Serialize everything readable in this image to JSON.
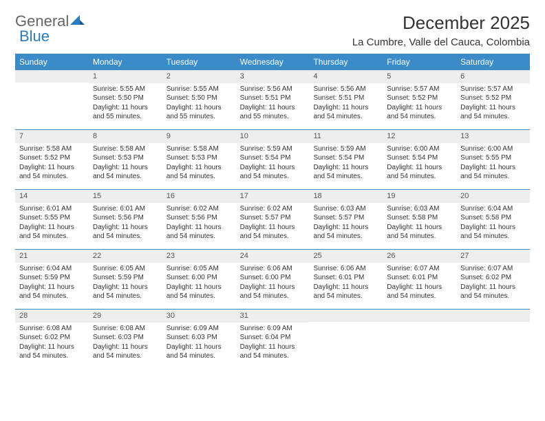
{
  "logo": {
    "general": "General",
    "blue": "Blue"
  },
  "title": "December 2025",
  "location": "La Cumbre, Valle del Cauca, Colombia",
  "colors": {
    "header_bg": "#3b8bc9",
    "header_text": "#ffffff",
    "daynum_bg": "#eeeeee",
    "border": "#3b8bc9",
    "logo_blue": "#2b7bbf",
    "text": "#333333"
  },
  "day_headers": [
    "Sunday",
    "Monday",
    "Tuesday",
    "Wednesday",
    "Thursday",
    "Friday",
    "Saturday"
  ],
  "weeks": [
    [
      {
        "num": "",
        "sunrise": "",
        "sunset": "",
        "daylight": ""
      },
      {
        "num": "1",
        "sunrise": "Sunrise: 5:55 AM",
        "sunset": "Sunset: 5:50 PM",
        "daylight": "Daylight: 11 hours and 55 minutes."
      },
      {
        "num": "2",
        "sunrise": "Sunrise: 5:55 AM",
        "sunset": "Sunset: 5:50 PM",
        "daylight": "Daylight: 11 hours and 55 minutes."
      },
      {
        "num": "3",
        "sunrise": "Sunrise: 5:56 AM",
        "sunset": "Sunset: 5:51 PM",
        "daylight": "Daylight: 11 hours and 55 minutes."
      },
      {
        "num": "4",
        "sunrise": "Sunrise: 5:56 AM",
        "sunset": "Sunset: 5:51 PM",
        "daylight": "Daylight: 11 hours and 54 minutes."
      },
      {
        "num": "5",
        "sunrise": "Sunrise: 5:57 AM",
        "sunset": "Sunset: 5:52 PM",
        "daylight": "Daylight: 11 hours and 54 minutes."
      },
      {
        "num": "6",
        "sunrise": "Sunrise: 5:57 AM",
        "sunset": "Sunset: 5:52 PM",
        "daylight": "Daylight: 11 hours and 54 minutes."
      }
    ],
    [
      {
        "num": "7",
        "sunrise": "Sunrise: 5:58 AM",
        "sunset": "Sunset: 5:52 PM",
        "daylight": "Daylight: 11 hours and 54 minutes."
      },
      {
        "num": "8",
        "sunrise": "Sunrise: 5:58 AM",
        "sunset": "Sunset: 5:53 PM",
        "daylight": "Daylight: 11 hours and 54 minutes."
      },
      {
        "num": "9",
        "sunrise": "Sunrise: 5:58 AM",
        "sunset": "Sunset: 5:53 PM",
        "daylight": "Daylight: 11 hours and 54 minutes."
      },
      {
        "num": "10",
        "sunrise": "Sunrise: 5:59 AM",
        "sunset": "Sunset: 5:54 PM",
        "daylight": "Daylight: 11 hours and 54 minutes."
      },
      {
        "num": "11",
        "sunrise": "Sunrise: 5:59 AM",
        "sunset": "Sunset: 5:54 PM",
        "daylight": "Daylight: 11 hours and 54 minutes."
      },
      {
        "num": "12",
        "sunrise": "Sunrise: 6:00 AM",
        "sunset": "Sunset: 5:54 PM",
        "daylight": "Daylight: 11 hours and 54 minutes."
      },
      {
        "num": "13",
        "sunrise": "Sunrise: 6:00 AM",
        "sunset": "Sunset: 5:55 PM",
        "daylight": "Daylight: 11 hours and 54 minutes."
      }
    ],
    [
      {
        "num": "14",
        "sunrise": "Sunrise: 6:01 AM",
        "sunset": "Sunset: 5:55 PM",
        "daylight": "Daylight: 11 hours and 54 minutes."
      },
      {
        "num": "15",
        "sunrise": "Sunrise: 6:01 AM",
        "sunset": "Sunset: 5:56 PM",
        "daylight": "Daylight: 11 hours and 54 minutes."
      },
      {
        "num": "16",
        "sunrise": "Sunrise: 6:02 AM",
        "sunset": "Sunset: 5:56 PM",
        "daylight": "Daylight: 11 hours and 54 minutes."
      },
      {
        "num": "17",
        "sunrise": "Sunrise: 6:02 AM",
        "sunset": "Sunset: 5:57 PM",
        "daylight": "Daylight: 11 hours and 54 minutes."
      },
      {
        "num": "18",
        "sunrise": "Sunrise: 6:03 AM",
        "sunset": "Sunset: 5:57 PM",
        "daylight": "Daylight: 11 hours and 54 minutes."
      },
      {
        "num": "19",
        "sunrise": "Sunrise: 6:03 AM",
        "sunset": "Sunset: 5:58 PM",
        "daylight": "Daylight: 11 hours and 54 minutes."
      },
      {
        "num": "20",
        "sunrise": "Sunrise: 6:04 AM",
        "sunset": "Sunset: 5:58 PM",
        "daylight": "Daylight: 11 hours and 54 minutes."
      }
    ],
    [
      {
        "num": "21",
        "sunrise": "Sunrise: 6:04 AM",
        "sunset": "Sunset: 5:59 PM",
        "daylight": "Daylight: 11 hours and 54 minutes."
      },
      {
        "num": "22",
        "sunrise": "Sunrise: 6:05 AM",
        "sunset": "Sunset: 5:59 PM",
        "daylight": "Daylight: 11 hours and 54 minutes."
      },
      {
        "num": "23",
        "sunrise": "Sunrise: 6:05 AM",
        "sunset": "Sunset: 6:00 PM",
        "daylight": "Daylight: 11 hours and 54 minutes."
      },
      {
        "num": "24",
        "sunrise": "Sunrise: 6:06 AM",
        "sunset": "Sunset: 6:00 PM",
        "daylight": "Daylight: 11 hours and 54 minutes."
      },
      {
        "num": "25",
        "sunrise": "Sunrise: 6:06 AM",
        "sunset": "Sunset: 6:01 PM",
        "daylight": "Daylight: 11 hours and 54 minutes."
      },
      {
        "num": "26",
        "sunrise": "Sunrise: 6:07 AM",
        "sunset": "Sunset: 6:01 PM",
        "daylight": "Daylight: 11 hours and 54 minutes."
      },
      {
        "num": "27",
        "sunrise": "Sunrise: 6:07 AM",
        "sunset": "Sunset: 6:02 PM",
        "daylight": "Daylight: 11 hours and 54 minutes."
      }
    ],
    [
      {
        "num": "28",
        "sunrise": "Sunrise: 6:08 AM",
        "sunset": "Sunset: 6:02 PM",
        "daylight": "Daylight: 11 hours and 54 minutes."
      },
      {
        "num": "29",
        "sunrise": "Sunrise: 6:08 AM",
        "sunset": "Sunset: 6:03 PM",
        "daylight": "Daylight: 11 hours and 54 minutes."
      },
      {
        "num": "30",
        "sunrise": "Sunrise: 6:09 AM",
        "sunset": "Sunset: 6:03 PM",
        "daylight": "Daylight: 11 hours and 54 minutes."
      },
      {
        "num": "31",
        "sunrise": "Sunrise: 6:09 AM",
        "sunset": "Sunset: 6:04 PM",
        "daylight": "Daylight: 11 hours and 54 minutes."
      },
      {
        "num": "",
        "sunrise": "",
        "sunset": "",
        "daylight": ""
      },
      {
        "num": "",
        "sunrise": "",
        "sunset": "",
        "daylight": ""
      },
      {
        "num": "",
        "sunrise": "",
        "sunset": "",
        "daylight": ""
      }
    ]
  ]
}
